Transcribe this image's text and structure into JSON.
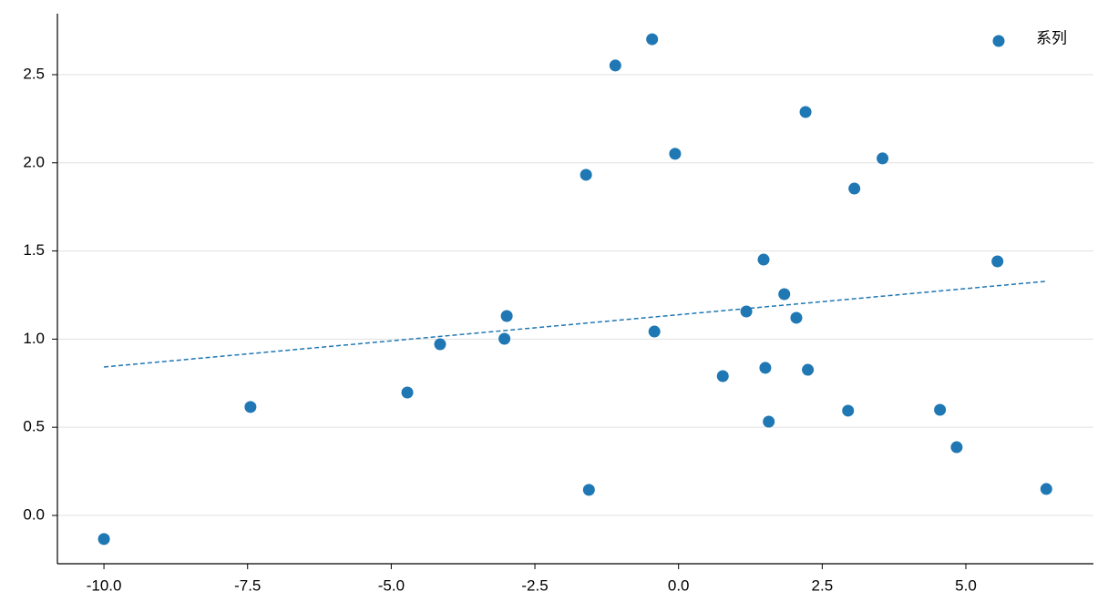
{
  "chart_data": {
    "type": "scatter",
    "series": [
      {
        "name": "系列",
        "color": "#1f77b4",
        "x": [
          -10.0,
          -7.45,
          -4.72,
          -4.15,
          -3.03,
          -2.99,
          -1.61,
          -1.56,
          -1.1,
          -0.46,
          -0.42,
          -0.06,
          0.77,
          1.18,
          1.48,
          1.51,
          1.57,
          1.84,
          2.05,
          2.21,
          2.25,
          2.95,
          3.06,
          3.55,
          4.55,
          4.84,
          5.55,
          6.4
        ],
        "values": [
          -0.134,
          0.615,
          0.697,
          0.971,
          1.002,
          1.131,
          1.932,
          0.145,
          2.552,
          2.701,
          1.043,
          2.051,
          0.79,
          1.157,
          1.451,
          0.837,
          0.532,
          1.255,
          1.121,
          2.288,
          0.826,
          0.594,
          1.854,
          2.025,
          0.599,
          0.387,
          1.441,
          0.15
        ]
      }
    ],
    "trendline": {
      "x": [
        -10.0,
        6.4
      ],
      "values": [
        0.842,
        1.328
      ],
      "color": "#1f77b4"
    },
    "xlim": [
      -10.81,
      7.22
    ],
    "ylim": [
      -0.274,
      2.846
    ],
    "xticks": [
      {
        "value": -10,
        "label": "-10.0"
      },
      {
        "value": -7.5,
        "label": "-7.5"
      },
      {
        "value": -5,
        "label": "-5.0"
      },
      {
        "value": -2.5,
        "label": "-2.5"
      },
      {
        "value": 0,
        "label": "0.0"
      },
      {
        "value": 2.5,
        "label": "2.5"
      },
      {
        "value": 5,
        "label": "5.0"
      }
    ],
    "yticks": [
      {
        "value": 0,
        "label": "0.0"
      },
      0.5,
      {
        "value": 1,
        "label": "1.0"
      },
      1.5,
      {
        "value": 2,
        "label": "2.0"
      },
      2.5
    ],
    "grid": true,
    "legend": "upper right"
  }
}
